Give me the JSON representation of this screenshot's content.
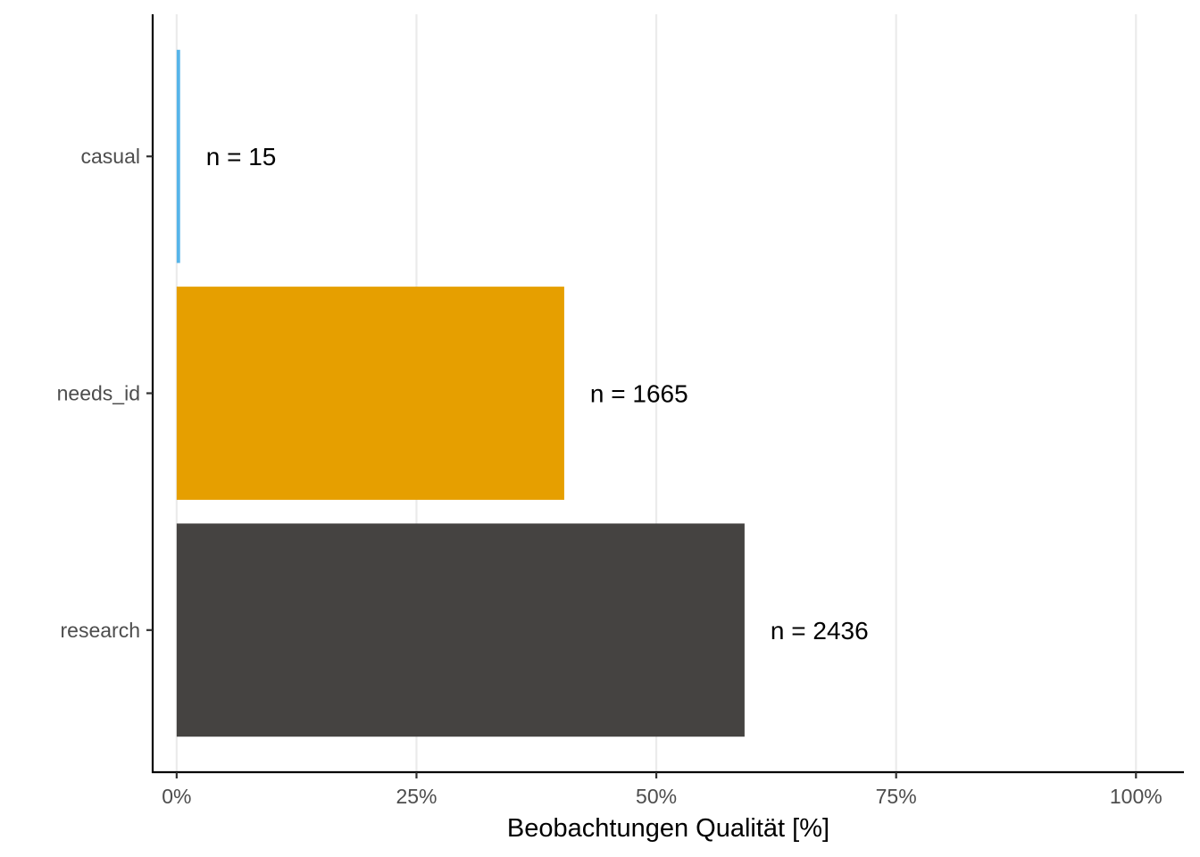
{
  "chart_data": {
    "type": "bar",
    "orientation": "horizontal",
    "categories": [
      "casual",
      "needs_id",
      "research"
    ],
    "values": [
      0.36,
      40.4,
      59.2
    ],
    "bar_labels": [
      "n = 15",
      "n = 1665",
      "n = 2436"
    ],
    "colors": [
      "#56B4E9",
      "#E69F00",
      "#454341"
    ],
    "xlabel": "Beobachtungen Qualität [%]",
    "ylabel": "",
    "xlim": [
      -2.5,
      105
    ],
    "x_ticks": [
      0,
      25,
      50,
      75,
      100
    ],
    "x_tick_labels": [
      "0%",
      "25%",
      "50%",
      "75%",
      "100%"
    ],
    "grid": "vertical major",
    "legend": "none"
  }
}
